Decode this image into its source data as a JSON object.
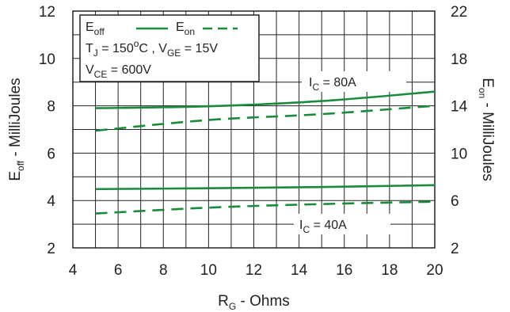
{
  "chart_data": {
    "type": "line",
    "x": [
      5,
      10,
      15,
      20
    ],
    "xlabel": {
      "main": "R",
      "sub": "G",
      "rest": " - Ohms"
    },
    "ylabel_left": {
      "main": "E",
      "sub": "off",
      "rest": " - MilliJoules"
    },
    "ylabel_right": {
      "main": "E",
      "sub": "on",
      "rest": " - MilliJoules"
    },
    "xlim": [
      4,
      20
    ],
    "ylim_left": [
      2,
      12
    ],
    "ylim_right": [
      2,
      22
    ],
    "x_ticks": [
      "4",
      "6",
      "8",
      "10",
      "12",
      "14",
      "16",
      "18",
      "20"
    ],
    "y_ticks_left": [
      "2",
      "4",
      "6",
      "8",
      "10",
      "12"
    ],
    "y_ticks_right": [
      "2",
      "6",
      "10",
      "14",
      "18",
      "22"
    ],
    "grid": true,
    "legend": {
      "entries": [
        {
          "main": "E",
          "sub": "off",
          "style": "solid"
        },
        {
          "main": "E",
          "sub": "on",
          "style": "dashed"
        }
      ],
      "cond1": [
        {
          "main": "T",
          "sub": "J",
          "rest": " = 150",
          "sup": "o",
          "rest2": "C ,  "
        },
        {
          "main": "V",
          "sub": "GE",
          "rest": " = 15V"
        }
      ],
      "cond2": {
        "main": "V",
        "sub": "CE",
        "rest": " = 600V"
      }
    },
    "annotations": [
      {
        "main": "I",
        "sub": "C",
        "rest": " = 80A"
      },
      {
        "main": "I",
        "sub": "C",
        "rest": " = 40A"
      }
    ],
    "series": [
      {
        "quantity": "Eoff",
        "condition": "IC = 80A",
        "axis": "left",
        "style": "solid",
        "values": [
          7.9,
          7.98,
          8.2,
          8.6
        ]
      },
      {
        "quantity": "Eon",
        "condition": "IC = 80A",
        "axis": "right",
        "style": "dashed",
        "values": [
          11.9,
          12.8,
          13.3,
          14.0
        ]
      },
      {
        "quantity": "Eoff",
        "condition": "IC = 40A",
        "axis": "left",
        "style": "solid",
        "values": [
          4.48,
          4.52,
          4.57,
          4.65
        ]
      },
      {
        "quantity": "Eon",
        "condition": "IC = 40A",
        "axis": "right",
        "style": "dashed",
        "values": [
          4.9,
          5.4,
          5.7,
          5.9
        ]
      }
    ],
    "colors": {
      "series": "#1a8a3c",
      "grid": "#222222",
      "text": "#222222"
    }
  }
}
